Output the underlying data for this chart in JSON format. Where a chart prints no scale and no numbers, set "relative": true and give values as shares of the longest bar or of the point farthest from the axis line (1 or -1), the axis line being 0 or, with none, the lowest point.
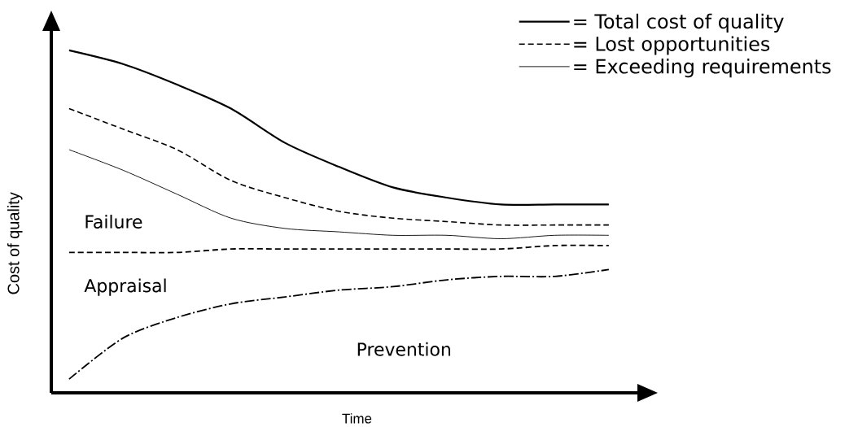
{
  "chart_data": {
    "type": "line",
    "relative": true,
    "xlabel": "Time",
    "ylabel": "Cost of quality",
    "legend": "top right",
    "categories": [
      null,
      null,
      null,
      null,
      null,
      null,
      null,
      null,
      null,
      null,
      null
    ],
    "series": [
      {
        "name": "= Total cost of quality",
        "color": "#000000",
        "line_style": "solid",
        "values": [
          1,
          0.96,
          0.9,
          0.83,
          0.73,
          0.66,
          0.6,
          0.57,
          0.55,
          0.55,
          0.55
        ]
      },
      {
        "name": "= Lost opportunities",
        "color": "#000000",
        "line_style": "dashed",
        "values": [
          0.83,
          0.77,
          0.71,
          0.62,
          0.57,
          0.53,
          0.51,
          0.5,
          0.49,
          0.49,
          0.49
        ]
      },
      {
        "name": "= Exceeding requirements",
        "color": "#000000",
        "line_style": "solid",
        "values": [
          0.71,
          0.65,
          0.58,
          0.51,
          0.48,
          0.47,
          0.46,
          0.46,
          0.45,
          0.46,
          0.46
        ]
      },
      {
        "color": "#000000",
        "line_style": "dashed",
        "values": [
          0.41,
          0.41,
          0.41,
          0.42,
          0.42,
          0.42,
          0.42,
          0.42,
          0.42,
          0.43,
          0.43
        ]
      },
      {
        "color": "#000000",
        "line_style": "dashdot",
        "values": [
          0.04,
          0.16,
          0.22,
          0.26,
          0.28,
          0.3,
          0.31,
          0.33,
          0.34,
          0.34,
          0.36
        ]
      }
    ],
    "annotations": [
      "Failure",
      "Appraisal",
      "Prevention"
    ]
  }
}
